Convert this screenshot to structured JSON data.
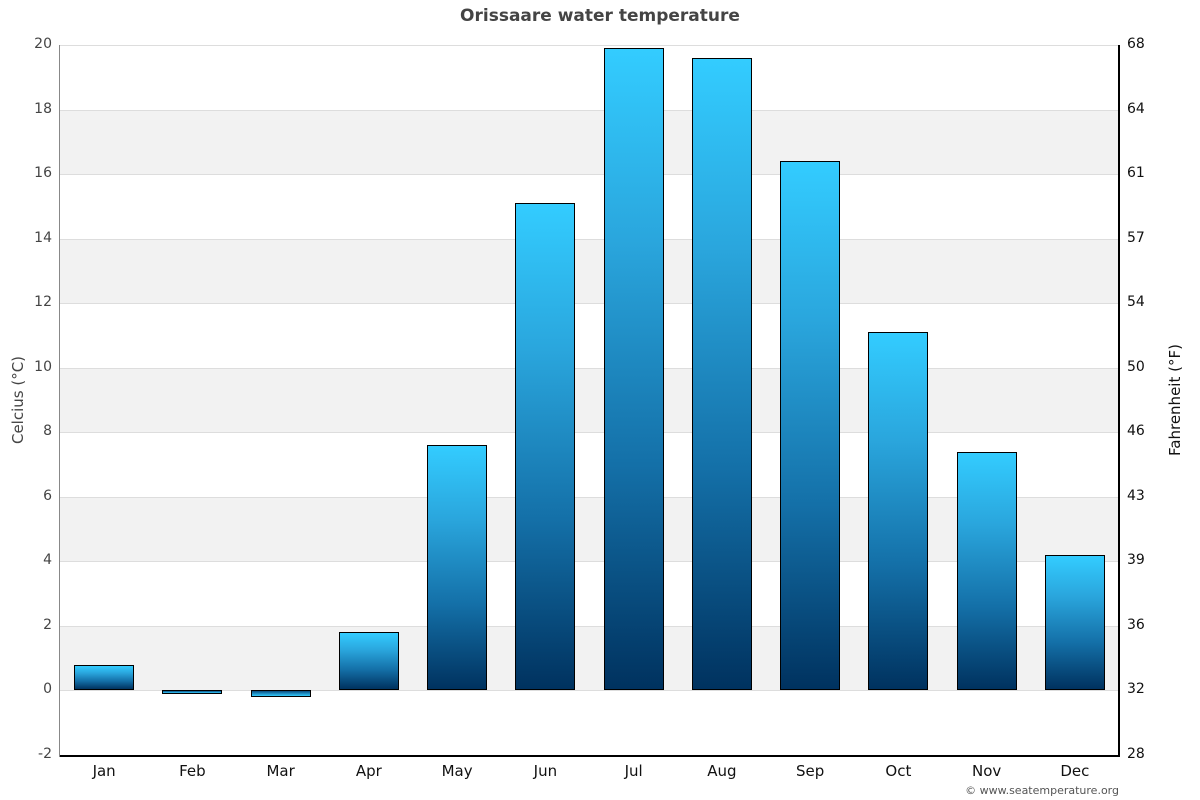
{
  "title": "Orissaare water temperature",
  "credit": "© www.seatemperature.org",
  "axes": {
    "left_label": "Celcius (°C)",
    "right_label": "Fahrenheit (°F)",
    "left_ticks": [
      "20",
      "18",
      "16",
      "14",
      "12",
      "10",
      "8",
      "6",
      "4",
      "2",
      "0",
      "-2"
    ],
    "right_ticks": [
      "68",
      "64",
      "61",
      "57",
      "54",
      "50",
      "46",
      "43",
      "39",
      "36",
      "32",
      "28"
    ],
    "months": [
      "Jan",
      "Feb",
      "Mar",
      "Apr",
      "May",
      "Jun",
      "Jul",
      "Aug",
      "Sep",
      "Oct",
      "Nov",
      "Dec"
    ]
  },
  "colors": {
    "bar_top": "#33ccff",
    "bar_bottom": "#00325f",
    "band": "#f2f2f2",
    "gridline": "#dddddd"
  },
  "chart_data": {
    "type": "bar",
    "title": "Orissaare water temperature",
    "categories": [
      "Jan",
      "Feb",
      "Mar",
      "Apr",
      "May",
      "Jun",
      "Jul",
      "Aug",
      "Sep",
      "Oct",
      "Nov",
      "Dec"
    ],
    "values": [
      0.8,
      -0.1,
      -0.2,
      1.8,
      7.6,
      15.1,
      19.9,
      19.6,
      16.4,
      11.1,
      7.4,
      4.2
    ],
    "xlabel": "",
    "ylabel": "Celcius (°C)",
    "y2label": "Fahrenheit (°F)",
    "ylim": [
      -2,
      20
    ],
    "y2lim": [
      28,
      68
    ],
    "grid": true,
    "legend": null
  }
}
